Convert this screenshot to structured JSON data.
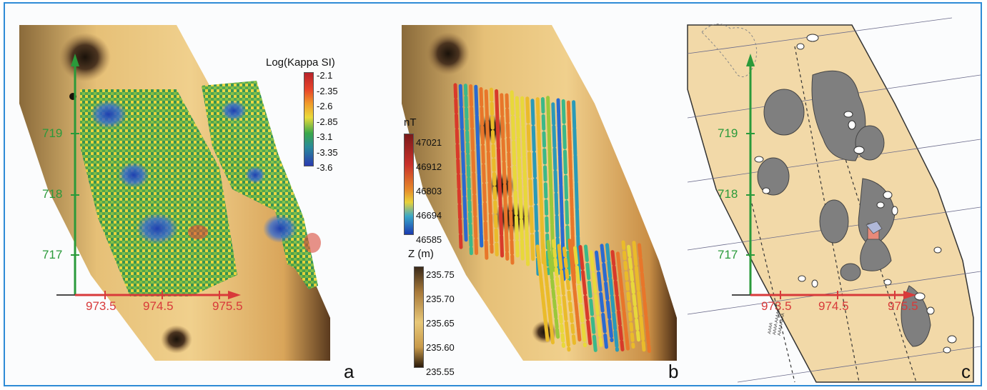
{
  "panels": {
    "a": {
      "letter": "a",
      "legend": {
        "title": "Log(Kappa SI)",
        "ticks": [
          "-2.1",
          "-2.35",
          "-2.6",
          "-2.85",
          "-3.1",
          "-3.35",
          "-3.6"
        ]
      },
      "axis": {
        "y_ticks": [
          "719",
          "718",
          "717"
        ],
        "x_ticks": [
          "973.5",
          "974.5",
          "975.5"
        ]
      }
    },
    "b": {
      "letter": "b",
      "legend_nt": {
        "title": "nT",
        "ticks": [
          "47021",
          "46912",
          "46803",
          "46694",
          "46585"
        ]
      },
      "legend_z": {
        "title": "Z (m)",
        "ticks": [
          "235.75",
          "235.70",
          "235.65",
          "235.60",
          "235.55"
        ]
      }
    },
    "c": {
      "letter": "c",
      "axis": {
        "y_ticks": [
          "719",
          "718",
          "717"
        ],
        "x_ticks": [
          "973.5",
          "974.5",
          "975.5"
        ]
      }
    }
  },
  "colors": {
    "axis_y": "#2a9a3a",
    "axis_x": "#d83a3a",
    "frame": "#2e8bd6",
    "terrain_light": "#e7c37a",
    "terrain_dark": "#6b4a2a",
    "map_bg": "#f2d9a8",
    "map_dark": "#808080"
  },
  "map_legend": [
    "AAAA",
    "AAAA AAAAA",
    "AAAAAAAA"
  ]
}
